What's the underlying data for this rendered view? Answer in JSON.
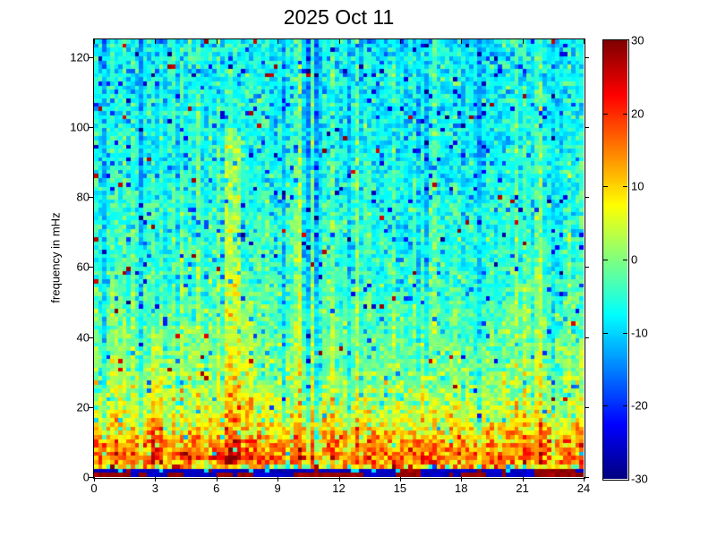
{
  "chart_data": {
    "type": "heatmap",
    "title": "2025 Oct 11",
    "xlabel": "",
    "ylabel": "frequency in mHz",
    "x_axis": {
      "range": [
        0,
        24
      ],
      "ticks": [
        0,
        3,
        6,
        9,
        12,
        15,
        18,
        21,
        24
      ]
    },
    "y_axis": {
      "range": [
        0,
        125
      ],
      "ticks": [
        0,
        20,
        40,
        60,
        80,
        100,
        120
      ]
    },
    "colorbar": {
      "min": -30,
      "max": 30,
      "ticks": [
        30,
        20,
        10,
        0,
        -10,
        -20,
        -30
      ],
      "colormap": "jet",
      "colormap_key_colors": [
        "#00007f",
        "#0000ff",
        "#00ffff",
        "#7fff7f",
        "#ffff00",
        "#ff0000",
        "#7f0000"
      ],
      "position": "right"
    },
    "grid_lines": "off",
    "background_color": "#ffffff",
    "axis_color": "#000000",
    "content_description": "Day-long spectrogram: strong power (orange/red, +8 to +25) below ~15 mHz all day, dark-red band at lowest frequencies mixed with dark-blue patches, fading through yellow-green (~0) near 25-35 mHz to cyan/blue (-4 to -10) above 50 mHz, with scattered dark-blue and rare dark-red speckles and vertical column streaks.",
    "generation": {
      "seed": 20251011,
      "grid": {
        "cols": 120,
        "rows": 104
      },
      "freq_profile": [
        [
          3,
          12
        ],
        [
          5,
          16
        ],
        [
          8,
          15
        ],
        [
          11,
          11
        ],
        [
          14,
          8
        ],
        [
          17,
          5.5
        ],
        [
          21,
          3.5
        ],
        [
          26,
          1.5
        ],
        [
          32,
          0
        ],
        [
          40,
          -1.5
        ],
        [
          50,
          -3
        ],
        [
          62,
          -4.5
        ],
        [
          78,
          -5.5
        ],
        [
          95,
          -6.5
        ],
        [
          125,
          -7.5
        ]
      ],
      "noise_sigma": [
        [
          16,
          5.2
        ],
        [
          30,
          4.2
        ],
        [
          125,
          3.2
        ]
      ],
      "col_offset_sigma": 1.6,
      "blue_col_prob": 0.09,
      "blue_col_extra": [
        3,
        7
      ],
      "green_col_prob": 0.09,
      "green_col_extra": [
        2.5,
        5.5
      ],
      "blue_speck_prob": 0.05,
      "blue_speck_depth": [
        6,
        20
      ],
      "red_speck_prob": 0.006,
      "red_speck_value": [
        24,
        30
      ],
      "bottom_bands": {
        "band1_f_max": 1.3,
        "band1_maroon_prob": 0.6,
        "band2_f_max": 2.5,
        "band2_maroon_prob": 0.3,
        "run_keep_prob": 0.72,
        "maroon_value": 29,
        "blue_value": -26,
        "band3_f_max": 3.7,
        "band3_base": 11,
        "band3_sigma": 8
      },
      "streaks": [
        {
          "hour": 6.85,
          "width": 0.45,
          "f_lo": 4,
          "f_hi": 100,
          "delta": 6
        },
        {
          "hour": 3.1,
          "width": 0.3,
          "f_lo": 4,
          "f_hi": 42,
          "delta": 5
        },
        {
          "hour": 7.5,
          "width": 0.3,
          "f_lo": 4,
          "f_hi": 50,
          "delta": 3.5
        },
        {
          "hour": 16.2,
          "width": 0.3,
          "f_lo": 4,
          "f_hi": 30,
          "delta": 4
        }
      ]
    }
  }
}
